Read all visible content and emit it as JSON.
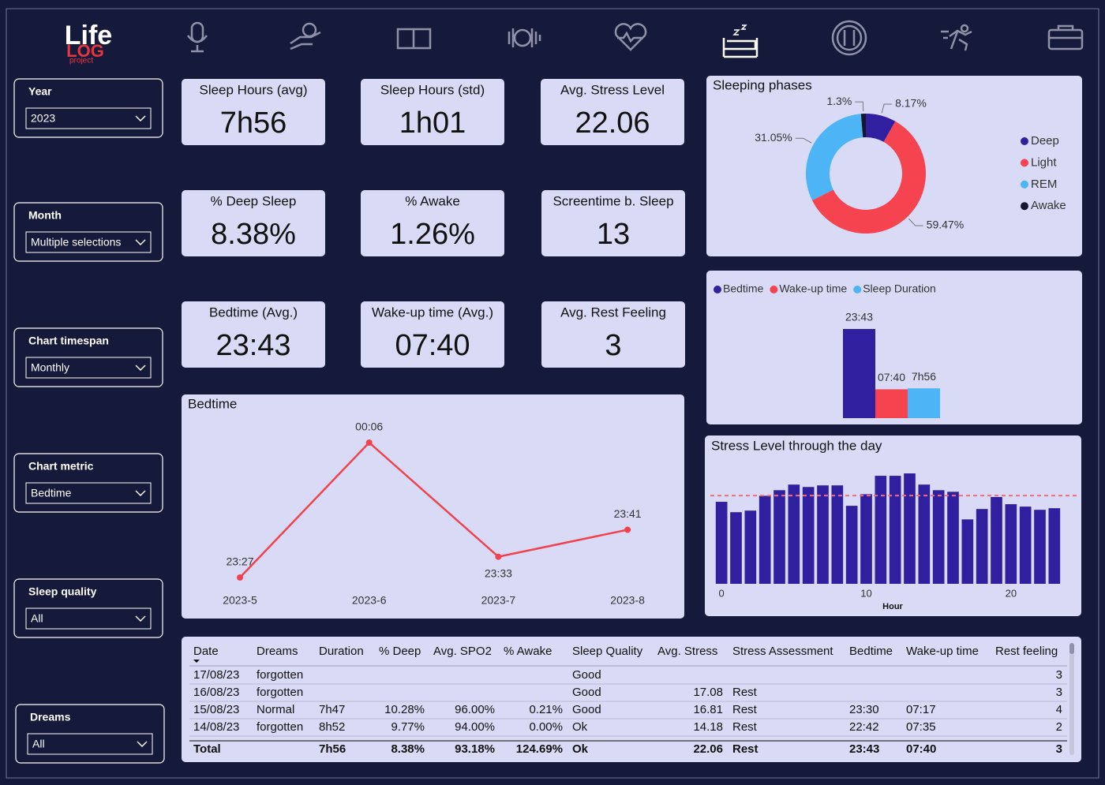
{
  "logo": {
    "line1": "Life",
    "line2": "LOG",
    "line3": "project"
  },
  "filters": [
    {
      "label": "Year",
      "value": "2023"
    },
    {
      "label": "Month",
      "value": "Multiple selections"
    },
    {
      "label": "Chart timespan",
      "value": "Monthly"
    },
    {
      "label": "Chart metric",
      "value": "Bedtime"
    },
    {
      "label": "Sleep quality",
      "value": "All"
    },
    {
      "label": "Dreams",
      "value": "All"
    }
  ],
  "kpis": [
    {
      "title": "Sleep Hours (avg)",
      "value": "7h56"
    },
    {
      "title": "Sleep Hours (std)",
      "value": "1h01"
    },
    {
      "title": "Avg. Stress Level",
      "value": "22.06"
    },
    {
      "title": "% Deep Sleep",
      "value": "8.38%"
    },
    {
      "title": "% Awake",
      "value": "1.26%"
    },
    {
      "title": "Screentime b. Sleep",
      "value": "13"
    },
    {
      "title": "Bedtime (Avg.)",
      "value": "23:43"
    },
    {
      "title": "Wake-up time (Avg.)",
      "value": "07:40"
    },
    {
      "title": "Avg. Rest Feeling",
      "value": "3"
    }
  ],
  "chart_data": [
    {
      "type": "pie",
      "title": "Sleeping phases",
      "donut": true,
      "legend": "right",
      "categories": [
        "Deep",
        "Light",
        "REM",
        "Awake"
      ],
      "values": [
        8.17,
        59.47,
        31.05,
        1.3
      ],
      "value_labels": [
        "8.17%",
        "59.47%",
        "31.05%",
        "1.3%"
      ],
      "colors": [
        "#30209f",
        "#f5434f",
        "#4db5f6",
        "#15172e"
      ]
    },
    {
      "type": "bar",
      "legend": "top-left",
      "series": [
        {
          "name": "Bedtime",
          "color": "#30209f",
          "values": [
            23.72
          ],
          "value_labels": [
            "23:43"
          ]
        },
        {
          "name": "Wake-up time",
          "color": "#f5434f",
          "values": [
            7.67
          ],
          "value_labels": [
            "07:40"
          ]
        },
        {
          "name": "Sleep Duration",
          "color": "#4db5f6",
          "values": [
            7.93
          ],
          "value_labels": [
            "7h56"
          ]
        }
      ]
    },
    {
      "type": "line",
      "title": "Bedtime",
      "color": "#f0434d",
      "categories": [
        "2023-5",
        "2023-6",
        "2023-7",
        "2023-8"
      ],
      "values": [
        23.45,
        24.1,
        23.55,
        23.68
      ],
      "value_labels": [
        "23:27",
        "00:06",
        "23:33",
        "23:41"
      ]
    },
    {
      "type": "bar",
      "title": "Stress Level through the day",
      "x_label": "Hour",
      "color": "#30209f",
      "x": [
        0,
        1,
        2,
        3,
        4,
        5,
        6,
        7,
        8,
        9,
        10,
        11,
        12,
        13,
        14,
        15,
        16,
        17,
        18,
        19,
        20,
        21,
        22,
        23
      ],
      "values": [
        20.5,
        17.9,
        18.3,
        22.0,
        23.4,
        24.8,
        24.2,
        24.6,
        24.6,
        19.5,
        22.4,
        27.0,
        27.0,
        27.6,
        24.8,
        23.4,
        23.0,
        16.1,
        18.7,
        21.7,
        19.9,
        19.3,
        18.5,
        18.9
      ],
      "xlim": [
        -0.5,
        23.5
      ],
      "xticks": [
        0,
        10,
        20
      ],
      "ylim": [
        0,
        28
      ],
      "average_line": 22.06,
      "average_color": "#f26c78",
      "grid": false
    }
  ],
  "table": {
    "columns": [
      "Date",
      "Dreams",
      "Duration",
      "% Deep",
      "Avg. SPO2",
      "% Awake",
      "Sleep Quality",
      "Avg. Stress",
      "Stress Assessment",
      "Bedtime",
      "Wake-up time",
      "Rest feeling"
    ],
    "rows": [
      [
        "17/08/23",
        "forgotten",
        null,
        null,
        null,
        null,
        "Good",
        null,
        null,
        null,
        null,
        "3"
      ],
      [
        "16/08/23",
        "forgotten",
        null,
        null,
        null,
        null,
        "Good",
        "17.08",
        "Rest",
        null,
        null,
        "3"
      ],
      [
        "15/08/23",
        "Normal",
        "7h47",
        "10.28%",
        "96.00%",
        "0.21%",
        "Good",
        "16.81",
        "Rest",
        "23:30",
        "07:17",
        "4"
      ],
      [
        "14/08/23",
        "forgotten",
        "8h52",
        "9.77%",
        "94.00%",
        "0.00%",
        "Ok",
        "14.18",
        "Rest",
        "22:42",
        "07:35",
        "2"
      ]
    ],
    "total": [
      "Total",
      null,
      "7h56",
      "8.38%",
      "93.18%",
      "124.69%",
      "Ok",
      "22.06",
      "Rest",
      "23:43",
      "07:40",
      "3"
    ]
  }
}
